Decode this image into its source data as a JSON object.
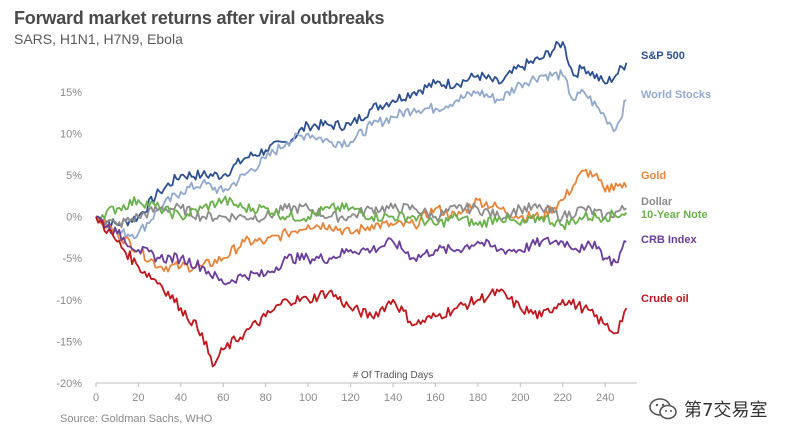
{
  "header": {
    "title": "Forward market returns after viral outbreaks",
    "subtitle": "SARS, H1N1, H7N9, Ebola"
  },
  "footer": {
    "source": "Source: Goldman Sachs, WHO",
    "watermark": "第7交易室"
  },
  "chart_data": {
    "type": "line",
    "title": "Forward market returns after viral outbreaks",
    "subtitle": "SARS, H1N1, H7N9, Ebola",
    "xlabel": "# Of Trading Days",
    "ylabel": "",
    "xlim": [
      0,
      255
    ],
    "ylim": [
      -20,
      21
    ],
    "xticks": [
      0,
      20,
      40,
      60,
      80,
      100,
      120,
      140,
      160,
      180,
      200,
      220,
      240
    ],
    "xtick_labels": [
      "0",
      "20",
      "40",
      "60",
      "80",
      "100",
      "120",
      "140",
      "160",
      "180",
      "200",
      "220",
      "240"
    ],
    "yticks": [
      15,
      10,
      5,
      0,
      -5,
      -10,
      -15,
      -20
    ],
    "ytick_labels": [
      "15%",
      "10%",
      "5%",
      "0%",
      "-5%",
      "-10%",
      "-15%",
      "-20%"
    ],
    "grid": false,
    "legend": "direct labels at right end of lines",
    "series": [
      {
        "name": "S&P 500",
        "color": "#2e5090",
        "points": [
          [
            0,
            0
          ],
          [
            10,
            -1
          ],
          [
            20,
            0
          ],
          [
            30,
            3
          ],
          [
            40,
            5
          ],
          [
            50,
            5
          ],
          [
            60,
            5
          ],
          [
            70,
            7
          ],
          [
            80,
            8
          ],
          [
            90,
            9
          ],
          [
            100,
            11
          ],
          [
            110,
            11
          ],
          [
            120,
            11
          ],
          [
            130,
            13
          ],
          [
            140,
            14
          ],
          [
            150,
            15
          ],
          [
            160,
            16
          ],
          [
            170,
            16
          ],
          [
            180,
            17
          ],
          [
            190,
            16
          ],
          [
            200,
            18
          ],
          [
            210,
            19
          ],
          [
            220,
            21
          ],
          [
            225,
            17
          ],
          [
            230,
            18
          ],
          [
            240,
            16
          ],
          [
            245,
            17
          ],
          [
            250,
            18.5
          ]
        ]
      },
      {
        "name": "World Stocks",
        "color": "#92a9cc",
        "points": [
          [
            0,
            0
          ],
          [
            10,
            -2
          ],
          [
            20,
            -2
          ],
          [
            30,
            1
          ],
          [
            40,
            3
          ],
          [
            50,
            4
          ],
          [
            60,
            3
          ],
          [
            70,
            5
          ],
          [
            80,
            7
          ],
          [
            90,
            9
          ],
          [
            100,
            10
          ],
          [
            110,
            9
          ],
          [
            120,
            9
          ],
          [
            130,
            11
          ],
          [
            140,
            12
          ],
          [
            150,
            13
          ],
          [
            160,
            13
          ],
          [
            170,
            14
          ],
          [
            180,
            15
          ],
          [
            190,
            14
          ],
          [
            200,
            16
          ],
          [
            210,
            17
          ],
          [
            220,
            17
          ],
          [
            225,
            14
          ],
          [
            230,
            15
          ],
          [
            240,
            12
          ],
          [
            245,
            10.5
          ],
          [
            250,
            14
          ]
        ]
      },
      {
        "name": "Gold",
        "color": "#e8843a",
        "points": [
          [
            0,
            0
          ],
          [
            10,
            -2
          ],
          [
            20,
            -4
          ],
          [
            30,
            -6
          ],
          [
            40,
            -6
          ],
          [
            50,
            -6
          ],
          [
            60,
            -5
          ],
          [
            70,
            -3
          ],
          [
            80,
            -3
          ],
          [
            90,
            -2
          ],
          [
            100,
            -1
          ],
          [
            110,
            -1
          ],
          [
            120,
            -2
          ],
          [
            130,
            -1
          ],
          [
            140,
            -1
          ],
          [
            150,
            -1
          ],
          [
            160,
            1
          ],
          [
            170,
            0
          ],
          [
            180,
            2
          ],
          [
            190,
            1
          ],
          [
            200,
            0
          ],
          [
            210,
            0
          ],
          [
            220,
            2
          ],
          [
            230,
            5.5
          ],
          [
            235,
            5
          ],
          [
            240,
            3
          ],
          [
            245,
            4
          ],
          [
            250,
            3.5
          ]
        ]
      },
      {
        "name": "Dollar",
        "color": "#8c8c8c",
        "points": [
          [
            0,
            0
          ],
          [
            10,
            -1
          ],
          [
            20,
            0
          ],
          [
            30,
            1
          ],
          [
            40,
            1
          ],
          [
            50,
            0
          ],
          [
            60,
            0
          ],
          [
            70,
            0
          ],
          [
            80,
            0
          ],
          [
            90,
            1
          ],
          [
            100,
            1
          ],
          [
            110,
            0
          ],
          [
            120,
            0
          ],
          [
            130,
            1
          ],
          [
            140,
            1
          ],
          [
            150,
            1
          ],
          [
            160,
            0
          ],
          [
            170,
            1
          ],
          [
            180,
            1
          ],
          [
            190,
            0
          ],
          [
            200,
            1
          ],
          [
            210,
            1
          ],
          [
            220,
            0
          ],
          [
            230,
            1
          ],
          [
            240,
            0
          ],
          [
            250,
            1
          ]
        ]
      },
      {
        "name": "10-Year Note",
        "color": "#6ab04c",
        "points": [
          [
            0,
            0
          ],
          [
            10,
            1
          ],
          [
            20,
            2
          ],
          [
            30,
            1
          ],
          [
            40,
            0
          ],
          [
            50,
            1
          ],
          [
            60,
            2
          ],
          [
            70,
            1
          ],
          [
            80,
            1
          ],
          [
            90,
            0
          ],
          [
            100,
            0
          ],
          [
            110,
            1
          ],
          [
            120,
            1
          ],
          [
            130,
            0
          ],
          [
            140,
            0
          ],
          [
            150,
            0
          ],
          [
            160,
            -1
          ],
          [
            170,
            0
          ],
          [
            180,
            -1
          ],
          [
            190,
            0
          ],
          [
            200,
            -1
          ],
          [
            210,
            0
          ],
          [
            220,
            -1
          ],
          [
            230,
            0
          ],
          [
            240,
            0
          ],
          [
            250,
            0.5
          ]
        ]
      },
      {
        "name": "CRB Index",
        "color": "#6a3d9a",
        "points": [
          [
            0,
            0
          ],
          [
            10,
            -2
          ],
          [
            20,
            -4
          ],
          [
            30,
            -5
          ],
          [
            40,
            -5
          ],
          [
            50,
            -6
          ],
          [
            60,
            -8
          ],
          [
            70,
            -7
          ],
          [
            80,
            -7
          ],
          [
            90,
            -5
          ],
          [
            100,
            -5
          ],
          [
            110,
            -5
          ],
          [
            120,
            -4
          ],
          [
            130,
            -4
          ],
          [
            140,
            -3
          ],
          [
            150,
            -5
          ],
          [
            160,
            -4
          ],
          [
            170,
            -4
          ],
          [
            180,
            -3
          ],
          [
            190,
            -4
          ],
          [
            200,
            -4
          ],
          [
            210,
            -3
          ],
          [
            220,
            -3
          ],
          [
            230,
            -4
          ],
          [
            235,
            -3
          ],
          [
            240,
            -5
          ],
          [
            245,
            -5.5
          ],
          [
            250,
            -3
          ]
        ]
      },
      {
        "name": "Crude oil",
        "color": "#c0161c",
        "points": [
          [
            0,
            0
          ],
          [
            10,
            -3
          ],
          [
            20,
            -6
          ],
          [
            30,
            -8
          ],
          [
            40,
            -11
          ],
          [
            50,
            -14
          ],
          [
            55,
            -18
          ],
          [
            60,
            -16
          ],
          [
            70,
            -14
          ],
          [
            80,
            -12
          ],
          [
            90,
            -10
          ],
          [
            100,
            -10
          ],
          [
            110,
            -9
          ],
          [
            120,
            -11
          ],
          [
            130,
            -12
          ],
          [
            140,
            -10
          ],
          [
            150,
            -13
          ],
          [
            160,
            -12
          ],
          [
            170,
            -11
          ],
          [
            180,
            -10
          ],
          [
            190,
            -9
          ],
          [
            200,
            -11
          ],
          [
            210,
            -12
          ],
          [
            220,
            -10
          ],
          [
            230,
            -11
          ],
          [
            240,
            -13
          ],
          [
            245,
            -14
          ],
          [
            250,
            -11
          ]
        ]
      }
    ]
  }
}
